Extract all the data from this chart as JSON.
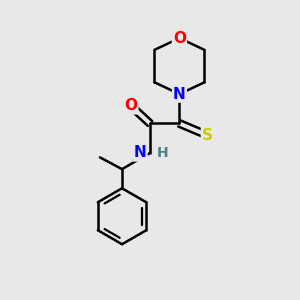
{
  "background_color": "#e8e8e8",
  "atom_colors": {
    "O": "#ff0000",
    "N": "#0000ff",
    "S": "#cccc00",
    "H": "#508080",
    "C": "#000000"
  },
  "bond_color": "#000000",
  "bond_width": 1.8,
  "figsize": [
    3.0,
    3.0
  ],
  "dpi": 100,
  "xlim": [
    0,
    10
  ],
  "ylim": [
    0,
    10
  ]
}
